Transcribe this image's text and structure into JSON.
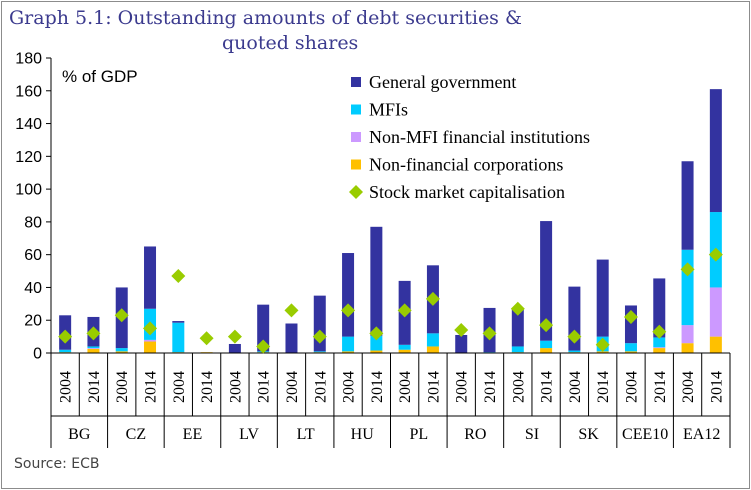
{
  "title": {
    "line1": "Graph 5.1: Outstanding amounts of debt securities  &",
    "line2": "quoted shares"
  },
  "source": "Source: ECB",
  "chart_data": {
    "type": "bar",
    "stacked": true,
    "unit_label": "% of GDP",
    "ylim": [
      0,
      180
    ],
    "yticks": [
      0,
      20,
      40,
      60,
      80,
      100,
      120,
      140,
      160,
      180
    ],
    "groups": [
      "BG",
      "CZ",
      "EE",
      "LV",
      "LT",
      "HU",
      "PL",
      "RO",
      "SI",
      "SK",
      "CEE10",
      "EA12"
    ],
    "categories": [
      "2004",
      "2014",
      "2004",
      "2014",
      "2004",
      "2014",
      "2004",
      "2014",
      "2004",
      "2014",
      "2004",
      "2014",
      "2004",
      "2014",
      "2004",
      "2014",
      "2004",
      "2014",
      "2004",
      "2014",
      "2004",
      "2014",
      "2004",
      "2014"
    ],
    "series": [
      {
        "name": "Non-financial corporations",
        "color": "#ffc000",
        "values": [
          0.5,
          2.5,
          1,
          7,
          0.5,
          0.5,
          0,
          0.5,
          0,
          0.5,
          1,
          1.5,
          2,
          4,
          0,
          0,
          0.5,
          3,
          0.5,
          1,
          1,
          3,
          6,
          10
        ]
      },
      {
        "name": "Non-MFI financial institutions",
        "color": "#cc99ff",
        "values": [
          0,
          0.5,
          0,
          1,
          0,
          0,
          0,
          0,
          0,
          0,
          0,
          0,
          0,
          0,
          0,
          0,
          0,
          0,
          0,
          0,
          0,
          0.5,
          11,
          30
        ]
      },
      {
        "name": "MFIs",
        "color": "#00ccff",
        "values": [
          1.5,
          1,
          2,
          19,
          18,
          0,
          0,
          0.5,
          0,
          0.5,
          9,
          9,
          3,
          8,
          0,
          0.5,
          3.5,
          4.5,
          1,
          9,
          5,
          6,
          46,
          46
        ]
      },
      {
        "name": "General government",
        "color": "#3333a0",
        "values": [
          21,
          18,
          37,
          38,
          1,
          0,
          5.5,
          28.5,
          18,
          34,
          51,
          66.5,
          39,
          41.5,
          11,
          27,
          23,
          73,
          39,
          47,
          23,
          36,
          54,
          75
        ]
      }
    ],
    "markers": {
      "name": "Stock market capitalisation",
      "color": "#99cc00",
      "shape": "diamond",
      "values": [
        10,
        12,
        23,
        15,
        47,
        9,
        10,
        4,
        26,
        10,
        26,
        12,
        26,
        33,
        14,
        12,
        27,
        17,
        10,
        5,
        22,
        13,
        51,
        60
      ]
    },
    "legend": {
      "entries": [
        "General government",
        "MFIs",
        "Non-MFI financial institutions",
        "Non-financial corporations",
        "Stock market capitalisation"
      ],
      "position": "top-right"
    }
  }
}
